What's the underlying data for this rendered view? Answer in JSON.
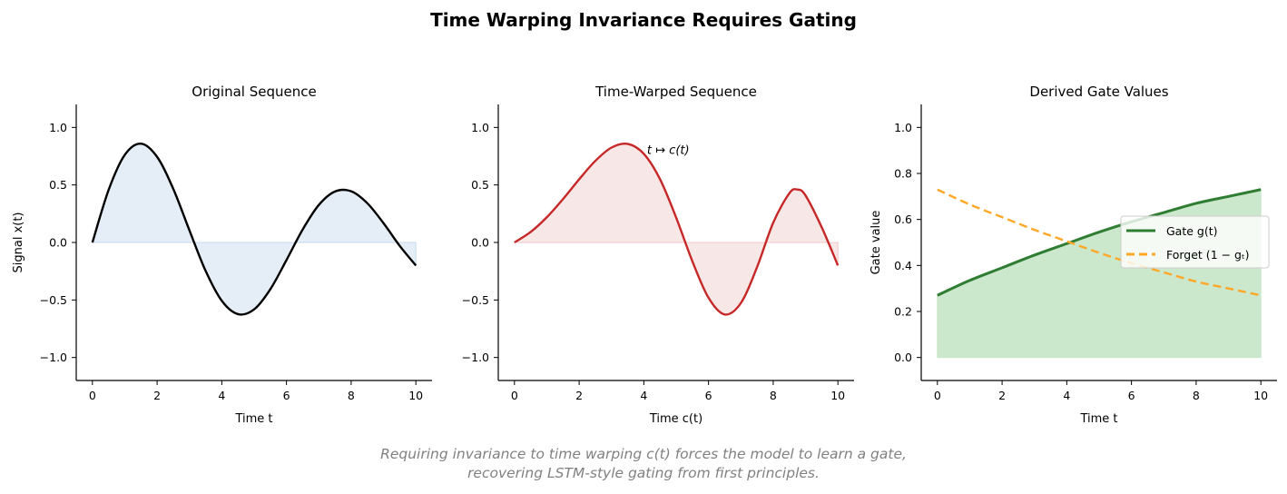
{
  "title": "Time Warping Invariance Requires Gating",
  "caption": [
    "Requiring invariance to time warping c(t) forces the model to learn a gate,",
    "recovering LSTM-style gating from first principles."
  ],
  "chart_data": [
    {
      "type": "area",
      "title": "Original Sequence",
      "xlabel": "Time t",
      "ylabel": "Signal x(t)",
      "xlim": [
        -0.5,
        10.5
      ],
      "ylim": [
        -1.2,
        1.2
      ],
      "xticks": [
        0,
        2,
        4,
        6,
        8,
        10
      ],
      "xtick_labels": [
        "0",
        "2",
        "4",
        "6",
        "8",
        "10"
      ],
      "yticks": [
        -1.0,
        -0.5,
        0.0,
        0.5,
        1.0
      ],
      "ytick_labels": [
        "−1.0",
        "−0.5",
        "0.0",
        "0.5",
        "1.0"
      ],
      "grid": false,
      "x": [
        0,
        0.5,
        1,
        1.5,
        2,
        2.5,
        3,
        3.5,
        4,
        4.5,
        5,
        5.5,
        6,
        6.5,
        7,
        7.5,
        8,
        8.5,
        9,
        9.5,
        10
      ],
      "series": [
        {
          "values": [
            0,
            0.456,
            0.761,
            0.859,
            0.744,
            0.466,
            0.105,
            -0.247,
            -0.507,
            -0.623,
            -0.582,
            -0.407,
            -0.153,
            0.112,
            0.326,
            0.443,
            0.445,
            0.341,
            0.168,
            -0.029,
            -0.2
          ],
          "color": "#000000",
          "fill": "#c6d9ee"
        }
      ]
    },
    {
      "type": "area",
      "title": "Time-Warped Sequence",
      "xlabel": "Time c(t)",
      "ylabel": "",
      "xlim": [
        -0.5,
        10.5
      ],
      "ylim": [
        -1.2,
        1.2
      ],
      "xticks": [
        0,
        2,
        4,
        6,
        8,
        10
      ],
      "xtick_labels": [
        "0",
        "2",
        "4",
        "6",
        "8",
        "10"
      ],
      "yticks": [
        -1.0,
        -0.5,
        0.0,
        0.5,
        1.0
      ],
      "ytick_labels": [
        "−1.0",
        "−0.5",
        "0.0",
        "0.5",
        "1.0"
      ],
      "grid": false,
      "annotation": "t ↦ c(t)",
      "x": [
        0,
        0.5,
        1,
        1.5,
        2,
        2.5,
        3,
        3.5,
        4,
        4.5,
        5,
        5.5,
        6,
        6.5,
        7,
        7.5,
        8,
        8.5,
        8.75,
        9,
        9.5,
        10
      ],
      "series": [
        {
          "values": [
            0,
            0.091,
            0.219,
            0.377,
            0.549,
            0.709,
            0.825,
            0.857,
            0.77,
            0.55,
            0.216,
            -0.163,
            -0.481,
            -0.626,
            -0.527,
            -0.215,
            0.172,
            0.428,
            0.46,
            0.408,
            0.132,
            -0.2
          ],
          "color": "#c62828",
          "fill": "#f0c9c9"
        }
      ]
    },
    {
      "type": "line",
      "title": "Derived Gate Values",
      "xlabel": "Time t",
      "ylabel": "Gate value",
      "xlim": [
        -0.5,
        10.5
      ],
      "ylim": [
        -0.1,
        1.1
      ],
      "xticks": [
        0,
        2,
        4,
        6,
        8,
        10
      ],
      "xtick_labels": [
        "0",
        "2",
        "4",
        "6",
        "8",
        "10"
      ],
      "yticks": [
        0.0,
        0.2,
        0.4,
        0.6,
        0.8,
        1.0
      ],
      "ytick_labels": [
        "0.0",
        "0.2",
        "0.4",
        "0.6",
        "0.8",
        "1.0"
      ],
      "grid": false,
      "legend": "center-right",
      "x": [
        0,
        1,
        2,
        3,
        4,
        5,
        6,
        7,
        8,
        9,
        10
      ],
      "series": [
        {
          "name": "Gate g(t)",
          "values": [
            0.27,
            0.335,
            0.39,
            0.445,
            0.495,
            0.545,
            0.59,
            0.63,
            0.67,
            0.7,
            0.73
          ],
          "color": "#2e7d32",
          "fill": "#c8e6c9",
          "style": "solid"
        },
        {
          "name": "Forget (1 − gₜ)",
          "values": [
            0.73,
            0.665,
            0.61,
            0.555,
            0.505,
            0.455,
            0.41,
            0.37,
            0.33,
            0.3,
            0.27
          ],
          "color": "#ffa726",
          "style": "dashed"
        }
      ]
    }
  ]
}
